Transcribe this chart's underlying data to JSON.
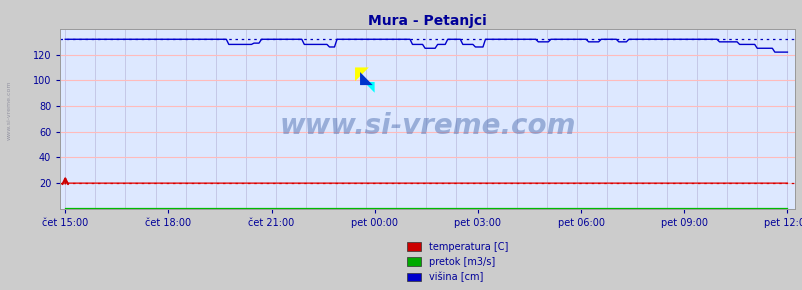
{
  "title": "Mura - Petanjci",
  "title_color": "#000099",
  "bg_color": "#cccccc",
  "plot_bg_color": "#dde8ff",
  "grid_color_h": "#ffbbbb",
  "grid_color_v": "#bbbbdd",
  "ylim": [
    0,
    140
  ],
  "yticks": [
    20,
    40,
    60,
    80,
    100,
    120
  ],
  "ylabel_color": "#000099",
  "xlabel_color": "#000099",
  "xtick_labels": [
    "čet 15:00",
    "čet 18:00",
    "čet 21:00",
    "pet 00:00",
    "pet 03:00",
    "pet 06:00",
    "pet 09:00",
    "pet 12:00"
  ],
  "watermark": "www.si-vreme.com",
  "watermark_color": "#4466aa",
  "watermark_alpha": 0.45,
  "watermark_fontsize": 20,
  "legend_labels": [
    "temperatura [C]",
    "pretok [m3/s]",
    "šina [cm]"
  ],
  "legend_labels_fixed": [
    "temperatura [C]",
    "pretok [m3/s]",
    "višina [cm]"
  ],
  "legend_colors": [
    "#cc0000",
    "#00aa00",
    "#0000cc"
  ],
  "line_color_temp": "#dd0000",
  "line_color_pretok": "#00bb00",
  "line_color_visina": "#0000cc",
  "avg_color_temp": "#cc0000",
  "avg_color_visina": "#0000bb",
  "num_points": 288,
  "temp_base": 20.0,
  "visina_base": 132,
  "side_label": "www.si-vreme.com",
  "side_label_color": "#888899"
}
